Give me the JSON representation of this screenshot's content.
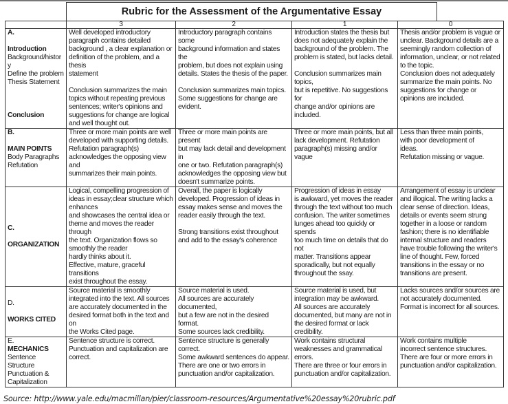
{
  "title": "Rubric for the Assessment of the Argumentative Essay",
  "score_headers": [
    "3",
    "2",
    "1",
    "0"
  ],
  "rows": [
    {
      "label": [
        {
          "t": "A.",
          "b": true
        },
        {
          "t": "",
          "b": false
        },
        {
          "t": "Introduction",
          "b": true
        },
        {
          "t": "Background/history",
          "b": false
        },
        {
          "t": "Define the problem",
          "b": false
        },
        {
          "t": "Thesis Statement",
          "b": false
        },
        {
          "t": "",
          "b": false
        },
        {
          "t": "",
          "b": false
        },
        {
          "t": "",
          "b": false
        },
        {
          "t": "Conclusion",
          "b": true
        }
      ],
      "valign": "top",
      "height": 137,
      "cells": [
        "Well developed introductory\nparagraph contains detailed\nbackground , a clear explanation or\ndefinition of the problem, and a thesis\nstatement\n\nConclusion summarizes the main\ntopics without repeating previous\nsentences; writer's opinions and\nsuggestions for change are logical\nand well thought out.",
        "Introductory paragraph contains some\nbackground information and states the\nproblem, but does not explain using\ndetails. States the thesis of the paper.\n\nConclusion summarizes main topics.\nSome suggestions for change are\nevident.",
        "Introduction states the thesis but\ndoes not adequately explain the\nbackground of the problem. The\nproblem is stated, but lacks detail.\n\nConclusion summarizes main topics,\nbut is repetitive. No suggestions for\nchange and/or opinions are\nincluded.",
        "Thesis and/or problem is vague or\nunclear. Background details are a\nseemingly random collection of\ninformation, unclear, or not related\nto the topic.\nConclusion does not adequately\nsummarize the main points. No\nsuggestions for change or\nopinions are included."
      ]
    },
    {
      "label": [
        {
          "t": "B.",
          "b": true
        },
        {
          "t": "",
          "b": false
        },
        {
          "t": "MAIN POINTS",
          "b": true
        },
        {
          "t": "Body Paragraphs",
          "b": false
        },
        {
          "t": "Refutation",
          "b": false
        }
      ],
      "valign": "top",
      "height": 56,
      "cells": [
        "Three or more main points are well\ndeveloped with supporting details.\nRefutation paragraph(s)\nacknowledges the opposing view and\nsummarizes their main points.",
        "Three or more main points are present\nbut may lack detail and development in\none or two. Refutation paragraph(s)\nacknowledges the opposing view but\ndoesn't summarize points.",
        "Three or more main points, but all\nlack development. Refutation\nparagraph(s) missing and/or vague",
        "Less than three main points,\nwith poor development of\nideas.\nRefutation missing or vague."
      ]
    },
    {
      "label": [
        {
          "t": "C.",
          "b": true
        },
        {
          "t": "",
          "b": false
        },
        {
          "t": "ORGANIZATION",
          "b": true
        }
      ],
      "valign": "middle",
      "height": 144,
      "cells": [
        "Logical, compelling progression of\nideas in essay;clear structure which\nenhances\nand showcases the central idea or\ntheme and moves the reader through\nthe text. Organization flows so\nsmoothly the reader\nhardly thinks about it.\nEffective, mature, graceful transitions\nexist throughout the essay.",
        "Overall, the paper is logically\ndeveloped. Progression of ideas in\nessay makes sense and moves the\nreader easily through the text.\n\nStrong transitions exist throughout\nand add to the essay's coherence",
        "Progression of ideas in essay\nis awkward, yet moves the reader\nthrough the text without too much\nconfusion. The writer sometimes\nlunges ahead too quickly or spends\ntoo much time on details that do not\nmatter. Transitions appear\nsporadically, but not equally\nthroughout the ssay.",
        "Arrangement of essay is unclear\nand illogical. The writing lacks a\nclear sense of direction. Ideas,\ndetails or events seem strung\ntogether in a loose or random\nfashion; there is no identifiable\ninternal structure and readers\nhave trouble following the writer's\nline of thought. Few, forced\ntransitions in the essay or no\ntransitions are present."
      ]
    },
    {
      "label": [
        {
          "t": "D.",
          "b": false
        },
        {
          "t": "",
          "b": false
        },
        {
          "t": "WORKS CITED",
          "b": true
        }
      ],
      "valign": "middle",
      "height": 46,
      "cells": [
        "Source material is smoothly\nintegrated into the text. All sources\nare accurately documented in the\ndesired format both in the text and on\nthe Works Cited page.",
        "Source material is used.\nAll sources are accurately documented,\nbut a few are not in the desired format.\nSome sources lack credibility.",
        "Source material is used, but\nintegration may be awkward.\nAll sources are accurately\ndocumented, but many are not in\nthe desired format or lack credibility.",
        "Lacks sources and/or sources are\nnot accurately documented.\nFormat is incorrect for all sources."
      ]
    },
    {
      "label": [
        {
          "t": "E.",
          "b": false
        },
        {
          "t": "MECHANICS",
          "b": true
        },
        {
          "t": "Sentence Structure",
          "b": false
        },
        {
          "t": "Punctuation &",
          "b": false
        },
        {
          "t": "Capitalization",
          "b": false
        }
      ],
      "valign": "top",
      "height": 62,
      "cells": [
        "Sentence structure is correct.\nPunctuation and capitalization are\ncorrect.",
        "Sentence structure is generally correct.\nSome awkward sentences do appear.\nThere are one or two errors in\npunctuation and/or capitalization.",
        "Work contains structural\nweaknesses and grammatical\nerrors.\nThere are three or four errors in\npunctuation and/or capitalization.",
        "Work contains multiple\nincorrect sentence structures.\nThere are four or more errors in\npunctuation and/or capitalization."
      ]
    }
  ],
  "source": "Source:  http://www.yale.edu/macmillan/pier/classroom-resources/Argumentative%20essay%20rubric.pdf"
}
